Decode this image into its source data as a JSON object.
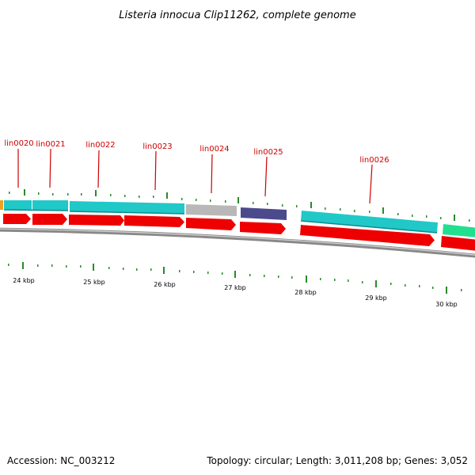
{
  "title": "Listeria innocua Clip11262, complete genome",
  "footer": {
    "accession": "Accession: NC_003212",
    "summary": "Topology: circular; Length: 3,011,208 bp; Genes: 3,052"
  },
  "colors": {
    "cds": "#ee0000",
    "gene_cyan": "#20c8c8",
    "gene_grey": "#b8b8b8",
    "gene_navy": "#4a4a8c",
    "gene_orange": "#f0a020",
    "gene_green": "#20e090",
    "tick": "#2a8a2a",
    "label": "#cc0000",
    "backbone": "#888888"
  },
  "scale_labels": [
    "24 kbp",
    "25 kbp",
    "26 kbp",
    "27 kbp",
    "28 kbp",
    "29 kbp",
    "30 kbp"
  ],
  "gene_labels": [
    "lin0020",
    "lin0021",
    "lin0022",
    "lin0023",
    "lin0024",
    "lin0025",
    "lin0026"
  ]
}
